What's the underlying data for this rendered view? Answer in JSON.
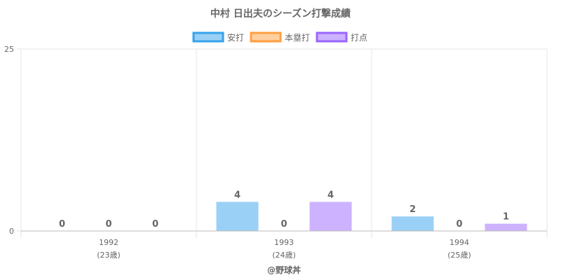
{
  "chart_data": {
    "type": "bar",
    "title": "中村 日出夫のシーズン打撃成績",
    "categories": [
      "1992",
      "1993",
      "1994"
    ],
    "category_sublabels": [
      "(23歳)",
      "(24歳)",
      "(25歳)"
    ],
    "series": [
      {
        "name": "安打",
        "values": [
          0,
          4,
          2
        ],
        "fill": "#9ad0f5",
        "stroke": "#36a2eb"
      },
      {
        "name": "本塁打",
        "values": [
          0,
          0,
          0
        ],
        "fill": "#ffcf9f",
        "stroke": "#ff9f40"
      },
      {
        "name": "打点",
        "values": [
          0,
          4,
          1
        ],
        "fill": "#ccb2ff",
        "stroke": "#9966ff"
      }
    ],
    "y_ticks": [
      "0",
      "25"
    ],
    "ylim": [
      0,
      25
    ],
    "grid": true,
    "legend_position": "top"
  },
  "credit": "@野球丼"
}
